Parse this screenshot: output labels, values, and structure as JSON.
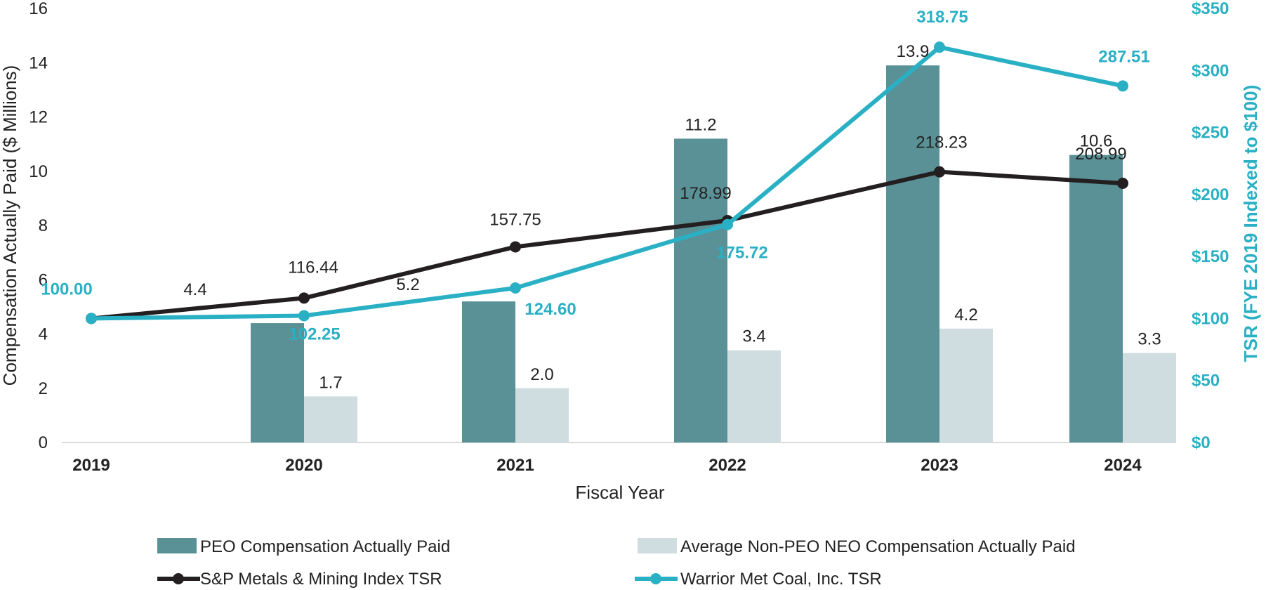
{
  "chart_data": {
    "type": "bar",
    "title": "",
    "xlabel": "Fiscal Year",
    "ylabel": "Compensation Actually Paid ($ Millions)",
    "y2label": "TSR (FYE 2019 Indexed to $100)",
    "ylim": [
      0,
      16
    ],
    "y_ticks": [
      0,
      2,
      4,
      6,
      8,
      10,
      12,
      14,
      16
    ],
    "y2lim": [
      0,
      350
    ],
    "y2_ticks": [
      "$0",
      "$50",
      "$100",
      "$150",
      "$200",
      "$250",
      "$300",
      "$350"
    ],
    "y2_tick_values": [
      0,
      50,
      100,
      150,
      200,
      250,
      300,
      350
    ],
    "categories": [
      "2019",
      "2020",
      "2021",
      "2022",
      "2023",
      "2024"
    ],
    "bar_series": [
      {
        "name": "PEO Compensation Actually Paid",
        "color": "#5a9196",
        "values": [
          null,
          4.4,
          5.2,
          11.2,
          13.9,
          10.6
        ],
        "labels": [
          "",
          "4.4",
          "5.2",
          "11.2",
          "13.9",
          "10.6"
        ]
      },
      {
        "name": "Average Non-PEO NEO Compensation Actually Paid",
        "color": "#cfdde1",
        "values": [
          null,
          1.7,
          2.0,
          3.4,
          4.2,
          3.3
        ],
        "labels": [
          "",
          "1.7",
          "2.0",
          "3.4",
          "4.2",
          "3.3"
        ]
      }
    ],
    "line_series": [
      {
        "name": "S&P Metals & Mining Index TSR",
        "color": "#231f20",
        "values": [
          100.0,
          116.44,
          157.75,
          178.99,
          218.23,
          208.99
        ],
        "labels": [
          "",
          "116.44",
          "157.75",
          "178.99",
          "218.23",
          "208.99"
        ]
      },
      {
        "name": "Warrior Met Coal, Inc. TSR",
        "color": "#2ab0c4",
        "values": [
          100.0,
          102.25,
          124.6,
          175.72,
          318.75,
          287.51
        ],
        "labels": [
          "100.00",
          "102.25",
          "124.60",
          "175.72",
          "318.75",
          "287.51"
        ]
      }
    ],
    "legend_position": "bottom",
    "grid": false
  },
  "colors": {
    "axis_teal": "#2ab0c4",
    "axis_line": "#d9d9d9"
  }
}
